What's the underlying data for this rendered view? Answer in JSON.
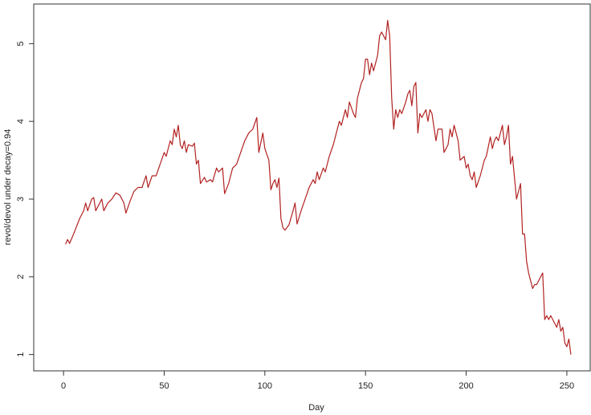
{
  "chart_data": {
    "type": "line",
    "xlabel": "Day",
    "ylabel": "revol/devol under decay=0.94",
    "color": "#b22222",
    "xlim": [
      -14.8,
      261.6
    ],
    "ylim": [
      0.79,
      5.51
    ],
    "xticks": [
      0,
      50,
      100,
      150,
      200,
      250
    ],
    "yticks": [
      1,
      2,
      3,
      4,
      5
    ],
    "x": [
      1,
      2,
      3,
      5,
      8,
      10,
      11,
      12,
      14,
      15,
      16,
      18,
      19,
      20,
      22,
      24,
      26,
      28,
      30,
      31,
      33,
      35,
      37,
      39,
      41,
      42,
      44,
      46,
      48,
      50,
      51,
      53,
      54,
      55,
      56,
      57,
      58,
      59,
      60,
      61,
      62,
      64,
      65,
      66,
      67,
      68,
      70,
      71,
      73,
      74,
      76,
      77,
      79,
      80,
      82,
      84,
      86,
      88,
      90,
      91,
      92,
      94,
      96,
      97,
      99,
      100,
      102,
      103,
      104,
      105,
      106,
      107,
      108,
      109,
      110,
      112,
      114,
      115,
      116,
      118,
      120,
      122,
      124,
      125,
      126,
      127,
      129,
      130,
      132,
      134,
      136,
      137,
      138,
      140,
      141,
      142,
      144,
      145,
      146,
      148,
      149,
      150,
      151,
      152,
      153,
      154,
      156,
      157,
      158,
      160,
      161,
      162,
      163,
      164,
      165,
      166,
      167,
      168,
      170,
      171,
      172,
      173,
      174,
      175,
      176,
      177,
      178,
      180,
      181,
      182,
      183,
      185,
      186,
      188,
      189,
      191,
      192,
      193,
      194,
      196,
      197,
      199,
      200,
      201,
      202,
      203,
      204,
      205,
      207,
      209,
      210,
      212,
      213,
      214,
      215,
      216,
      217,
      218,
      219,
      220,
      221,
      222,
      223,
      225,
      226,
      227,
      228,
      229,
      230,
      231,
      232,
      233,
      234,
      235,
      237,
      238,
      239,
      240,
      241,
      242,
      243,
      245,
      246,
      247,
      248,
      249,
      250,
      251,
      252
    ],
    "values": [
      2.42,
      2.48,
      2.43,
      2.55,
      2.75,
      2.85,
      2.95,
      2.85,
      3.0,
      3.02,
      2.85,
      2.95,
      3.0,
      2.85,
      2.95,
      3.0,
      3.08,
      3.05,
      2.95,
      2.82,
      2.97,
      3.1,
      3.15,
      3.15,
      3.3,
      3.15,
      3.3,
      3.3,
      3.45,
      3.6,
      3.55,
      3.75,
      3.7,
      3.9,
      3.8,
      3.95,
      3.7,
      3.65,
      3.75,
      3.6,
      3.7,
      3.68,
      3.72,
      3.45,
      3.5,
      3.2,
      3.28,
      3.22,
      3.25,
      3.22,
      3.4,
      3.35,
      3.4,
      3.07,
      3.2,
      3.4,
      3.45,
      3.6,
      3.75,
      3.8,
      3.85,
      3.9,
      4.05,
      3.6,
      3.85,
      3.65,
      3.5,
      3.12,
      3.2,
      3.25,
      3.15,
      3.27,
      2.75,
      2.63,
      2.6,
      2.67,
      2.85,
      2.95,
      2.68,
      2.85,
      3.0,
      3.15,
      3.25,
      3.2,
      3.35,
      3.25,
      3.4,
      3.35,
      3.55,
      3.7,
      3.9,
      4.0,
      3.95,
      4.15,
      4.05,
      4.25,
      4.1,
      4.05,
      4.3,
      4.5,
      4.55,
      4.8,
      4.8,
      4.6,
      4.75,
      4.65,
      4.85,
      5.1,
      5.15,
      5.05,
      5.3,
      5.1,
      4.3,
      3.9,
      4.15,
      4.05,
      4.15,
      4.1,
      4.25,
      4.35,
      4.4,
      4.2,
      4.45,
      4.5,
      3.85,
      4.1,
      4.05,
      4.15,
      4.0,
      4.15,
      4.1,
      3.75,
      3.9,
      3.9,
      3.6,
      3.7,
      3.9,
      3.8,
      3.95,
      3.75,
      3.5,
      3.55,
      3.4,
      3.45,
      3.3,
      3.25,
      3.35,
      3.15,
      3.3,
      3.5,
      3.55,
      3.8,
      3.65,
      3.75,
      3.8,
      3.75,
      3.85,
      3.95,
      3.7,
      3.8,
      3.95,
      3.45,
      3.55,
      3.0,
      3.1,
      3.2,
      2.55,
      2.55,
      2.2,
      2.05,
      1.95,
      1.85,
      1.9,
      1.9,
      2.0,
      2.05,
      1.45,
      1.5,
      1.45,
      1.5,
      1.45,
      1.35,
      1.45,
      1.3,
      1.35,
      1.15,
      1.1,
      1.2,
      1.0
    ]
  }
}
